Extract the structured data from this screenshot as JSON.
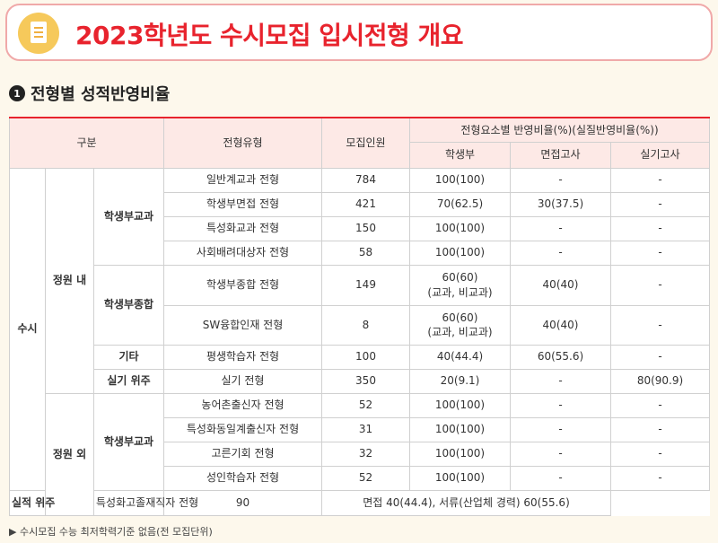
{
  "header": {
    "title": "2023학년도 수시모집 입시전형 개요"
  },
  "section": {
    "number": "1",
    "title": "전형별 성적반영비율"
  },
  "table": {
    "col_category": "구분",
    "col_type": "전형유형",
    "col_quota": "모집인원",
    "col_ratio": "전형요소별 반영비율(%)(실질반영비율(%))",
    "sub_record": "학생부",
    "sub_interview": "면접고사",
    "sub_practical": "실기고사",
    "group_main": "수시",
    "group_inside": "정원 내",
    "group_outside": "정원 외",
    "sub_a": "학생부교과",
    "sub_b": "학생부종합",
    "sub_c": "기타",
    "sub_d": "실기 위주",
    "sub_e": "학생부교과",
    "sub_f": "실적 위주",
    "rows": [
      {
        "type": "일반계교과 전형",
        "quota": "784",
        "record": "100(100)",
        "interview": "-",
        "practical": "-"
      },
      {
        "type": "학생부면접 전형",
        "quota": "421",
        "record": "70(62.5)",
        "interview": "30(37.5)",
        "practical": "-"
      },
      {
        "type": "특성화교과 전형",
        "quota": "150",
        "record": "100(100)",
        "interview": "-",
        "practical": "-"
      },
      {
        "type": "사회배려대상자 전형",
        "quota": "58",
        "record": "100(100)",
        "interview": "-",
        "practical": "-"
      },
      {
        "type": "학생부종합 전형",
        "quota": "149",
        "record": "60(60)",
        "record2": "(교과, 비교과)",
        "interview": "40(40)",
        "practical": "-"
      },
      {
        "type": "SW융합인재 전형",
        "quota": "8",
        "record": "60(60)",
        "record2": "(교과, 비교과)",
        "interview": "40(40)",
        "practical": "-"
      },
      {
        "type": "평생학습자 전형",
        "quota": "100",
        "record": "40(44.4)",
        "interview": "60(55.6)",
        "practical": "-"
      },
      {
        "type": "실기 전형",
        "quota": "350",
        "record": "20(9.1)",
        "interview": "-",
        "practical": "80(90.9)"
      },
      {
        "type": "농어촌출신자 전형",
        "quota": "52",
        "record": "100(100)",
        "interview": "-",
        "practical": "-"
      },
      {
        "type": "특성화동일계출신자 전형",
        "quota": "31",
        "record": "100(100)",
        "interview": "-",
        "practical": "-"
      },
      {
        "type": "고른기회 전형",
        "quota": "32",
        "record": "100(100)",
        "interview": "-",
        "practical": "-"
      },
      {
        "type": "성인학습자 전형",
        "quota": "52",
        "record": "100(100)",
        "interview": "-",
        "practical": "-"
      },
      {
        "type": "특성화고졸재직자 전형",
        "quota": "90",
        "merged": "면접 40(44.4), 서류(산업체 경력) 60(55.6)"
      }
    ]
  },
  "footnote": "▶ 수시모집 수능 최저학력기준 없음(전 모집단위)",
  "colors": {
    "accent": "#e8232d",
    "header_bg": "#fde9e6",
    "page_bg": "#fdf8ec",
    "icon": "#f6c95b"
  }
}
